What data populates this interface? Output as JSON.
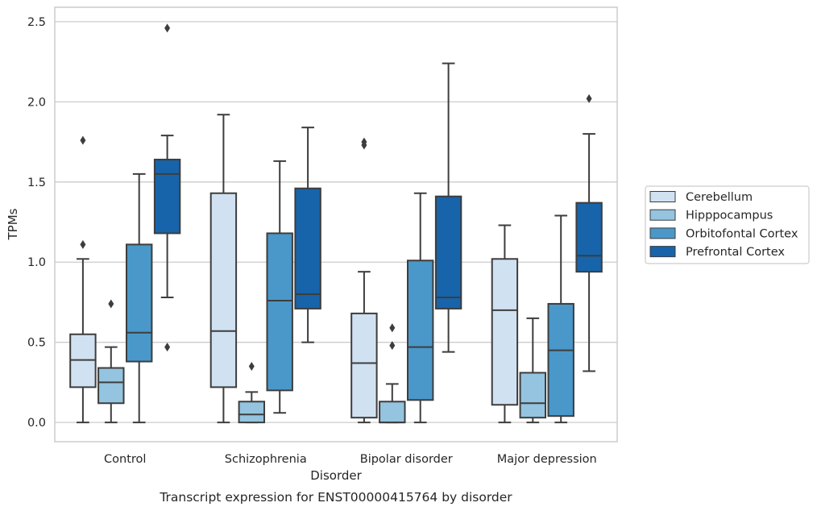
{
  "chart_data": {
    "type": "box",
    "title": "",
    "caption": "Transcript expression for ENST00000415764 by disorder",
    "xlabel": "Disorder",
    "ylabel": "TPMs",
    "ylim": [
      -0.12,
      2.59
    ],
    "yticks": [
      0.0,
      0.5,
      1.0,
      1.5,
      2.0,
      2.5
    ],
    "ytick_labels": [
      "0.0",
      "0.5",
      "1.0",
      "1.5",
      "2.0",
      "2.5"
    ],
    "grid": "horizontal",
    "legend_position": "right",
    "categories": [
      "Control",
      "Schizophrenia",
      "Bipolar disorder",
      "Major depression"
    ],
    "series": [
      {
        "name": "Cerebellum",
        "color": "#d0e1f2",
        "boxes": [
          {
            "whislo": 0.0,
            "q1": 0.22,
            "med": 0.39,
            "q3": 0.55,
            "whishi": 1.02,
            "fliers": [
              1.11,
              1.76
            ]
          },
          {
            "whislo": 0.0,
            "q1": 0.22,
            "med": 0.57,
            "q3": 1.43,
            "whishi": 1.92,
            "fliers": []
          },
          {
            "whislo": 0.0,
            "q1": 0.03,
            "med": 0.37,
            "q3": 0.68,
            "whishi": 0.94,
            "fliers": [
              1.73,
              1.75
            ]
          },
          {
            "whislo": 0.0,
            "q1": 0.11,
            "med": 0.7,
            "q3": 1.02,
            "whishi": 1.23,
            "fliers": []
          }
        ]
      },
      {
        "name": "Hipppocampus",
        "color": "#94c4df",
        "boxes": [
          {
            "whislo": 0.0,
            "q1": 0.12,
            "med": 0.25,
            "q3": 0.34,
            "whishi": 0.47,
            "fliers": [
              0.74
            ]
          },
          {
            "whislo": 0.0,
            "q1": 0.0,
            "med": 0.05,
            "q3": 0.13,
            "whishi": 0.19,
            "fliers": [
              0.35
            ]
          },
          {
            "whislo": 0.0,
            "q1": 0.0,
            "med": 0.0,
            "q3": 0.13,
            "whishi": 0.24,
            "fliers": [
              0.48,
              0.59
            ]
          },
          {
            "whislo": 0.0,
            "q1": 0.03,
            "med": 0.12,
            "q3": 0.31,
            "whishi": 0.65,
            "fliers": []
          }
        ]
      },
      {
        "name": "Orbitofontal Cortex",
        "color": "#4a98c9",
        "boxes": [
          {
            "whislo": 0.0,
            "q1": 0.38,
            "med": 0.56,
            "q3": 1.11,
            "whishi": 1.55,
            "fliers": []
          },
          {
            "whislo": 0.06,
            "q1": 0.2,
            "med": 0.76,
            "q3": 1.18,
            "whishi": 1.63,
            "fliers": []
          },
          {
            "whislo": 0.0,
            "q1": 0.14,
            "med": 0.47,
            "q3": 1.01,
            "whishi": 1.43,
            "fliers": []
          },
          {
            "whislo": 0.0,
            "q1": 0.04,
            "med": 0.45,
            "q3": 0.74,
            "whishi": 1.29,
            "fliers": []
          }
        ]
      },
      {
        "name": "Prefrontal Cortex",
        "color": "#1764ab",
        "boxes": [
          {
            "whislo": 0.78,
            "q1": 1.18,
            "med": 1.55,
            "q3": 1.64,
            "whishi": 1.79,
            "fliers": [
              0.47,
              2.46
            ]
          },
          {
            "whislo": 0.5,
            "q1": 0.71,
            "med": 0.8,
            "q3": 1.46,
            "whishi": 1.84,
            "fliers": []
          },
          {
            "whislo": 0.44,
            "q1": 0.71,
            "med": 0.78,
            "q3": 1.41,
            "whishi": 2.24,
            "fliers": []
          },
          {
            "whislo": 0.32,
            "q1": 0.94,
            "med": 1.04,
            "q3": 1.37,
            "whishi": 1.8,
            "fliers": [
              2.02
            ]
          }
        ]
      }
    ]
  }
}
